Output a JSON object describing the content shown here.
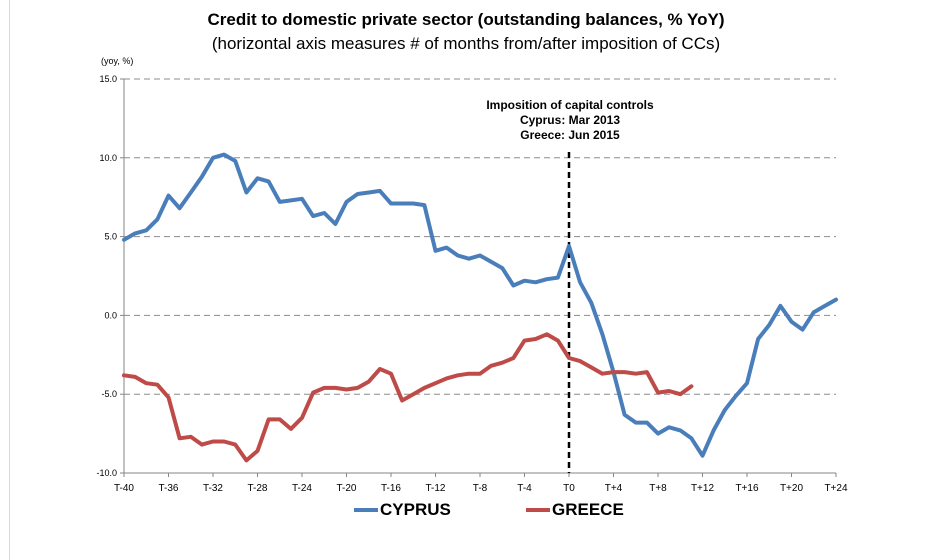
{
  "chart_data": {
    "type": "line",
    "title": "Credit to domestic private sector (outstanding balances, % YoY)",
    "subtitle": "(horizontal axis measures # of months from/after imposition of CCs)",
    "ylabel": "(yoy, %)",
    "xlabel": "",
    "ylim": [
      -10,
      15
    ],
    "yticks": [
      "15.0",
      "10.0",
      "5.0",
      "0.0",
      "-5.0",
      "-10.0"
    ],
    "xlim": [
      -40,
      24
    ],
    "xticks": [
      "T-40",
      "T-36",
      "T-32",
      "T-28",
      "T-24",
      "T-20",
      "T-16",
      "T-12",
      "T-8",
      "T-4",
      "T0",
      "T+4",
      "T+8",
      "T+12",
      "T+16",
      "T+20",
      "T+24"
    ],
    "grid": "horizontal dashed",
    "legend_position": "bottom",
    "annotation": [
      "Imposition of capital controls",
      "Cyprus: Mar 2013",
      "Greece: Jun 2015"
    ],
    "vline_at": 0,
    "series": [
      {
        "name": "CYPRUS",
        "color": "#4a7ebb",
        "x": [
          -40,
          -39,
          -38,
          -37,
          -36,
          -35,
          -34,
          -33,
          -32,
          -31,
          -30,
          -29,
          -28,
          -27,
          -26,
          -25,
          -24,
          -23,
          -22,
          -21,
          -20,
          -19,
          -18,
          -17,
          -16,
          -15,
          -14,
          -13,
          -12,
          -11,
          -10,
          -9,
          -8,
          -7,
          -6,
          -5,
          -4,
          -3,
          -2,
          -1,
          0,
          1,
          2,
          3,
          4,
          5,
          6,
          7,
          8,
          9,
          10,
          11,
          12,
          13,
          14,
          15,
          16,
          17,
          18,
          19,
          20,
          21,
          22,
          23,
          24
        ],
        "values": [
          4.8,
          5.2,
          5.4,
          6.1,
          7.6,
          6.8,
          7.8,
          8.8,
          10.0,
          10.2,
          9.8,
          7.8,
          8.7,
          8.5,
          7.2,
          7.3,
          7.4,
          6.3,
          6.5,
          5.8,
          7.2,
          7.7,
          7.8,
          7.9,
          7.1,
          7.1,
          7.1,
          7.0,
          4.1,
          4.3,
          3.8,
          3.6,
          3.8,
          3.4,
          3.0,
          1.9,
          2.2,
          2.1,
          2.3,
          2.4,
          4.4,
          2.1,
          0.8,
          -1.2,
          -3.6,
          -6.3,
          -6.8,
          -6.8,
          -7.5,
          -7.1,
          -7.3,
          -7.8,
          -8.9,
          -7.3,
          -6.0,
          -5.1,
          -4.3,
          -1.5,
          -0.6,
          0.6,
          -0.4,
          -0.9,
          0.2,
          0.6,
          1.0
        ]
      },
      {
        "name": "GREECE",
        "color": "#be4b48",
        "x": [
          -40,
          -39,
          -38,
          -37,
          -36,
          -35,
          -34,
          -33,
          -32,
          -31,
          -30,
          -29,
          -28,
          -27,
          -26,
          -25,
          -24,
          -23,
          -22,
          -21,
          -20,
          -19,
          -18,
          -17,
          -16,
          -15,
          -14,
          -13,
          -12,
          -11,
          -10,
          -9,
          -8,
          -7,
          -6,
          -5,
          -4,
          -3,
          -2,
          -1,
          0,
          1,
          2,
          3,
          4,
          5,
          6,
          7,
          8,
          9,
          10,
          11
        ],
        "values": [
          -3.8,
          -3.9,
          -4.3,
          -4.4,
          -5.2,
          -7.8,
          -7.7,
          -8.2,
          -8.0,
          -8.0,
          -8.2,
          -9.2,
          -8.6,
          -6.6,
          -6.6,
          -7.2,
          -6.5,
          -4.9,
          -4.6,
          -4.6,
          -4.7,
          -4.6,
          -4.2,
          -3.4,
          -3.7,
          -5.4,
          -5.0,
          -4.6,
          -4.3,
          -4.0,
          -3.8,
          -3.7,
          -3.7,
          -3.2,
          -3.0,
          -2.7,
          -1.6,
          -1.5,
          -1.2,
          -1.6,
          -2.7,
          -2.9,
          -3.3,
          -3.7,
          -3.6,
          -3.6,
          -3.7,
          -3.6,
          -4.9,
          -4.8,
          -5.0,
          -4.5
        ]
      }
    ]
  }
}
